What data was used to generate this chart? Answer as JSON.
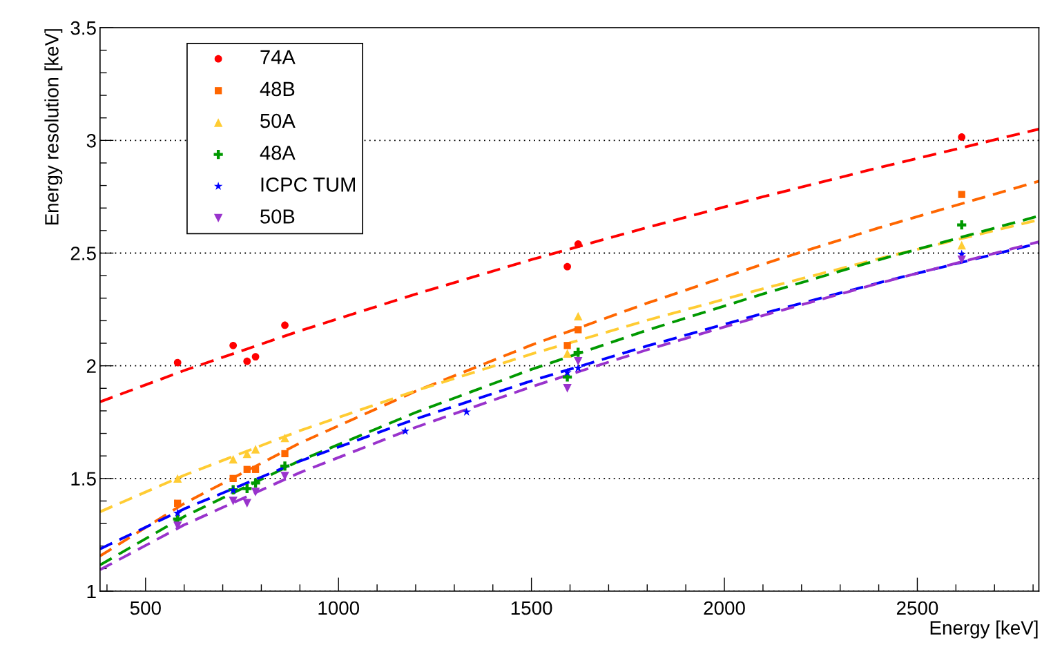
{
  "chart_data": {
    "type": "scatter",
    "xlabel": "Energy [keV]",
    "ylabel": "Energy resolution [keV]",
    "xlim": [
      382,
      2815
    ],
    "xticks": [
      500,
      1000,
      1500,
      2000,
      2500
    ],
    "ylim": [
      1,
      3.5
    ],
    "yticks": [
      1,
      1.5,
      2,
      2.5,
      3,
      3.5
    ],
    "grid": "y",
    "legend": "top left",
    "series": [
      {
        "name": "74A",
        "color": "#ff0000",
        "marker": "circle",
        "x": [
          583,
          727,
          763,
          785,
          861,
          1593,
          1621,
          2615
        ],
        "values": [
          2.014,
          2.09,
          2.02,
          2.04,
          2.18,
          2.44,
          2.54,
          3.015
        ]
      },
      {
        "name": "48B",
        "color": "#ff6600",
        "marker": "square",
        "x": [
          583,
          727,
          763,
          785,
          861,
          1593,
          1621,
          2615
        ],
        "values": [
          1.39,
          1.5,
          1.54,
          1.54,
          1.61,
          2.09,
          2.16,
          2.76
        ]
      },
      {
        "name": "50A",
        "color": "#ffcc33",
        "marker": "triangle",
        "x": [
          583,
          727,
          763,
          785,
          861,
          1593,
          1621,
          2615
        ],
        "values": [
          1.5,
          1.585,
          1.61,
          1.63,
          1.68,
          2.055,
          2.22,
          2.535
        ]
      },
      {
        "name": "48A",
        "color": "#009900",
        "marker": "cross",
        "x": [
          583,
          727,
          763,
          785,
          861,
          1593,
          1621,
          2615
        ],
        "values": [
          1.32,
          1.45,
          1.455,
          1.48,
          1.555,
          1.95,
          2.06,
          2.625
        ]
      },
      {
        "name": "ICPC TUM",
        "color": "#0000ff",
        "marker": "star",
        "x": [
          583,
          727,
          861,
          1173,
          1332,
          1593,
          1621,
          2615
        ],
        "values": [
          1.346,
          1.447,
          null,
          1.71,
          1.795,
          1.97,
          1.99,
          2.495
        ]
      },
      {
        "name": "50B",
        "color": "#9933cc",
        "marker": "triangle_down",
        "x": [
          583,
          727,
          763,
          785,
          861,
          1593,
          1621,
          2615
        ],
        "values": [
          1.29,
          1.4,
          1.39,
          1.44,
          1.51,
          1.9,
          2.02,
          2.47
        ]
      },
      {
        "type": "line",
        "line_style": "dashed",
        "color": "#ff0000",
        "x": [
          382,
          600,
          900,
          1200,
          1500,
          1800,
          2100,
          2400,
          2815
        ],
        "values": [
          1.84,
          1.979,
          2.155,
          2.318,
          2.471,
          2.614,
          2.75,
          2.879,
          3.05
        ]
      },
      {
        "type": "line",
        "line_style": "dashed",
        "color": "#ff6600",
        "x": [
          382,
          600,
          900,
          1200,
          1500,
          1800,
          2100,
          2400,
          2815
        ],
        "values": [
          1.156,
          1.389,
          1.657,
          1.887,
          2.092,
          2.278,
          2.451,
          2.612,
          2.819
        ]
      },
      {
        "type": "line",
        "line_style": "dashed",
        "color": "#ffcc33",
        "x": [
          382,
          600,
          900,
          1200,
          1500,
          1800,
          2100,
          2400,
          2815
        ],
        "values": [
          1.352,
          1.514,
          1.712,
          1.889,
          2.052,
          2.202,
          2.342,
          2.475,
          2.648
        ]
      },
      {
        "type": "line",
        "line_style": "dashed",
        "color": "#009900",
        "x": [
          382,
          600,
          900,
          1200,
          1500,
          1800,
          2100,
          2400,
          2815
        ],
        "values": [
          1.116,
          1.331,
          1.579,
          1.793,
          1.984,
          2.158,
          2.319,
          2.47,
          2.665
        ]
      },
      {
        "type": "line",
        "line_style": "dashed",
        "color": "#0000ff",
        "x": [
          382,
          600,
          900,
          1200,
          1500,
          1800,
          2100,
          2400,
          2815
        ],
        "values": [
          1.187,
          1.365,
          1.577,
          1.764,
          1.933,
          2.088,
          2.232,
          2.368,
          2.544
        ]
      },
      {
        "type": "line",
        "line_style": "dashed",
        "color": "#9933cc",
        "x": [
          382,
          600,
          900,
          1200,
          1500,
          1800,
          2100,
          2400,
          2815
        ],
        "values": [
          1.095,
          1.294,
          1.526,
          1.727,
          1.907,
          2.071,
          2.223,
          2.366,
          2.55
        ]
      }
    ]
  }
}
